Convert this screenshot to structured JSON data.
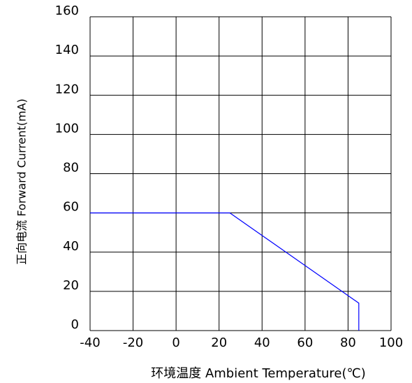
{
  "chart_data": {
    "type": "line",
    "xlabel": "环境温度  Ambient Temperature(℃)",
    "ylabel": "正向电流 Forward Current(mA)",
    "series": [
      {
        "name": "Forward Current",
        "color": "#0000ff",
        "x": [
          -40,
          25,
          85,
          85
        ],
        "values": [
          60,
          60,
          14,
          0
        ]
      }
    ],
    "xlim": [
      -40,
      100
    ],
    "xticks": [
      -40,
      -20,
      0,
      20,
      40,
      60,
      80,
      100
    ],
    "ylim": [
      0,
      160
    ],
    "yticks": [
      0,
      20,
      40,
      60,
      80,
      100,
      120,
      140,
      160
    ],
    "grid": true
  }
}
